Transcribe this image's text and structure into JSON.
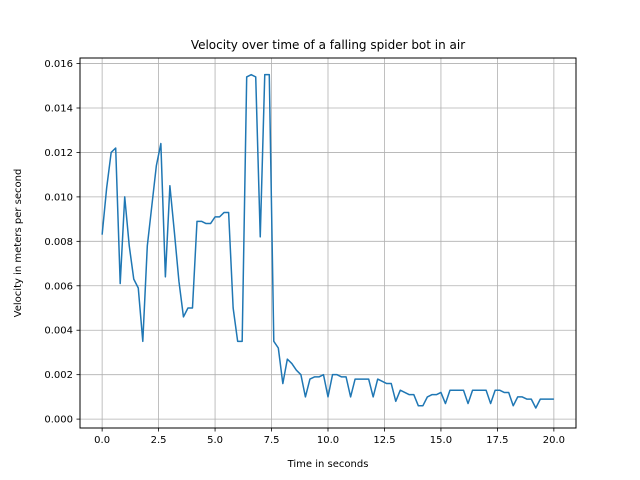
{
  "chart_data": {
    "type": "line",
    "title": "Velocity over time of a falling spider bot in air",
    "xlabel": "Time in seconds",
    "ylabel": "Velocity in meters per second",
    "xlim": [
      -0.98,
      20.98
    ],
    "ylim": [
      -0.0004,
      0.01625
    ],
    "grid": true,
    "line_color": "#1f77b4",
    "grid_color": "#b0b0b0",
    "xticks": [
      0.0,
      2.5,
      5.0,
      7.5,
      10.0,
      12.5,
      15.0,
      17.5,
      20.0
    ],
    "xtick_labels": [
      "0.0",
      "2.5",
      "5.0",
      "7.5",
      "10.0",
      "12.5",
      "15.0",
      "17.5",
      "20.0"
    ],
    "yticks": [
      0.0,
      0.002,
      0.004,
      0.006,
      0.008,
      0.01,
      0.012,
      0.014,
      0.016
    ],
    "ytick_labels": [
      "0.000",
      "0.002",
      "0.004",
      "0.006",
      "0.008",
      "0.010",
      "0.012",
      "0.014",
      "0.016"
    ],
    "series": [
      {
        "x": [
          0.0,
          0.2,
          0.4,
          0.6,
          0.8,
          1.0,
          1.2,
          1.4,
          1.6,
          1.8,
          2.0,
          2.2,
          2.4,
          2.6,
          2.8,
          3.0,
          3.2,
          3.4,
          3.6,
          3.8,
          4.0,
          4.2,
          4.4,
          4.6,
          4.8,
          5.0,
          5.2,
          5.4,
          5.6,
          5.8,
          6.0,
          6.2,
          6.4,
          6.6,
          6.8,
          7.0,
          7.2,
          7.4,
          7.6,
          7.8,
          8.0,
          8.2,
          8.4,
          8.6,
          8.8,
          9.0,
          9.2,
          9.4,
          9.6,
          9.8,
          10.0,
          10.2,
          10.4,
          10.6,
          10.8,
          11.0,
          11.2,
          11.4,
          11.6,
          11.8,
          12.0,
          12.2,
          12.4,
          12.6,
          12.8,
          13.0,
          13.2,
          13.4,
          13.6,
          13.8,
          14.0,
          14.2,
          14.4,
          14.6,
          14.8,
          15.0,
          15.2,
          15.4,
          15.6,
          15.8,
          16.0,
          16.2,
          16.4,
          16.6,
          16.8,
          17.0,
          17.2,
          17.4,
          17.6,
          17.8,
          18.0,
          18.2,
          18.4,
          18.6,
          18.8,
          19.0,
          19.2,
          19.4,
          19.6,
          19.8,
          20.0
        ],
        "y": [
          0.0083,
          0.0104,
          0.012,
          0.0122,
          0.0061,
          0.01,
          0.0078,
          0.0063,
          0.0059,
          0.0035,
          0.0078,
          0.0096,
          0.0114,
          0.0124,
          0.0064,
          0.0105,
          0.0084,
          0.0062,
          0.0046,
          0.005,
          0.005,
          0.0089,
          0.0089,
          0.0088,
          0.0088,
          0.0091,
          0.0091,
          0.0093,
          0.0093,
          0.005,
          0.0035,
          0.0035,
          0.0154,
          0.0155,
          0.0154,
          0.0082,
          0.0155,
          0.0155,
          0.0035,
          0.0032,
          0.0016,
          0.0027,
          0.0025,
          0.0022,
          0.002,
          0.001,
          0.0018,
          0.0019,
          0.0019,
          0.002,
          0.001,
          0.002,
          0.002,
          0.0019,
          0.0019,
          0.001,
          0.0018,
          0.0018,
          0.0018,
          0.0018,
          0.001,
          0.0018,
          0.0017,
          0.0016,
          0.0016,
          0.0008,
          0.0013,
          0.0012,
          0.0011,
          0.0011,
          0.0006,
          0.0006,
          0.001,
          0.0011,
          0.0011,
          0.0012,
          0.0007,
          0.0013,
          0.0013,
          0.0013,
          0.0013,
          0.0007,
          0.0013,
          0.0013,
          0.0013,
          0.0013,
          0.0007,
          0.0013,
          0.0013,
          0.0012,
          0.0012,
          0.0006,
          0.001,
          0.001,
          0.0009,
          0.0009,
          0.0005,
          0.0009,
          0.0009,
          0.0009,
          0.0009
        ]
      }
    ]
  }
}
